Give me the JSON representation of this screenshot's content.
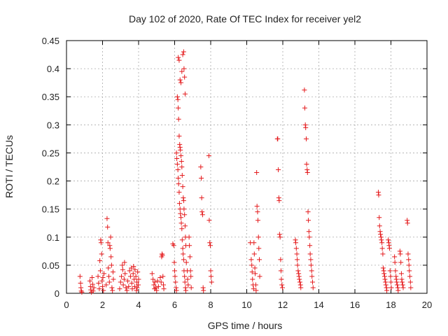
{
  "chart_data": {
    "type": "scatter",
    "title": "Day 102 of 2020, Rate Of TEC Index for receiver yel2",
    "xlabel": "GPS time / hours",
    "ylabel": "ROTI / TECUs",
    "xlim": [
      0,
      20
    ],
    "ylim": [
      0,
      0.45
    ],
    "xticks": [
      "0",
      "2",
      "4",
      "6",
      "8",
      "10",
      "12",
      "14",
      "16",
      "18",
      "20"
    ],
    "yticks": [
      "0",
      "0.05",
      "0.1",
      "0.15",
      "0.2",
      "0.25",
      "0.3",
      "0.35",
      "0.4",
      "0.45"
    ],
    "grid": true,
    "marker": "+",
    "marker_color": "#e41a1c",
    "series": [
      {
        "name": "ROTI",
        "points": [
          [
            0.75,
            0.03
          ],
          [
            0.78,
            0.018
          ],
          [
            0.8,
            0.01
          ],
          [
            0.82,
            0.004
          ],
          [
            0.85,
            0.002
          ],
          [
            1.3,
            0.022
          ],
          [
            1.33,
            0.012
          ],
          [
            1.35,
            0.006
          ],
          [
            1.38,
            0.002
          ],
          [
            1.42,
            0.028
          ],
          [
            1.45,
            0.016
          ],
          [
            1.48,
            0.004
          ],
          [
            1.52,
            0.01
          ],
          [
            1.75,
            0.03
          ],
          [
            1.78,
            0.018
          ],
          [
            1.82,
            0.008
          ],
          [
            1.85,
            0.058
          ],
          [
            1.88,
            0.04
          ],
          [
            1.9,
            0.095
          ],
          [
            1.92,
            0.09
          ],
          [
            1.95,
            0.07
          ],
          [
            1.97,
            0.022
          ],
          [
            2.0,
            0.012
          ],
          [
            2.02,
            0.028
          ],
          [
            2.05,
            0.005
          ],
          [
            2.08,
            0.035
          ],
          [
            2.2,
            0.015
          ],
          [
            2.25,
            0.133
          ],
          [
            2.28,
            0.118
          ],
          [
            2.3,
            0.09
          ],
          [
            2.32,
            0.045
          ],
          [
            2.35,
            0.03
          ],
          [
            2.38,
            0.02
          ],
          [
            2.4,
            0.085
          ],
          [
            2.42,
            0.08
          ],
          [
            2.45,
            0.1
          ],
          [
            2.47,
            0.065
          ],
          [
            2.5,
            0.05
          ],
          [
            2.52,
            0.01
          ],
          [
            2.55,
            0.005
          ],
          [
            2.58,
            0.038
          ],
          [
            2.6,
            0.025
          ],
          [
            2.95,
            0.008
          ],
          [
            3.0,
            0.02
          ],
          [
            3.05,
            0.03
          ],
          [
            3.1,
            0.05
          ],
          [
            3.12,
            0.042
          ],
          [
            3.15,
            0.015
          ],
          [
            3.2,
            0.025
          ],
          [
            3.22,
            0.055
          ],
          [
            3.25,
            0.035
          ],
          [
            3.3,
            0.01
          ],
          [
            3.35,
            0.005
          ],
          [
            3.4,
            0.022
          ],
          [
            3.45,
            0.012
          ],
          [
            3.5,
            0.04
          ],
          [
            3.55,
            0.03
          ],
          [
            3.6,
            0.045
          ],
          [
            3.62,
            0.018
          ],
          [
            3.65,
            0.008
          ],
          [
            3.7,
            0.035
          ],
          [
            3.72,
            0.048
          ],
          [
            3.75,
            0.025
          ],
          [
            3.78,
            0.012
          ],
          [
            3.8,
            0.042
          ],
          [
            3.85,
            0.03
          ],
          [
            3.88,
            0.005
          ],
          [
            3.9,
            0.02
          ],
          [
            3.92,
            0.01
          ],
          [
            3.95,
            0.038
          ],
          [
            3.98,
            0.015
          ],
          [
            4.0,
            0.025
          ],
          [
            4.75,
            0.035
          ],
          [
            4.8,
            0.025
          ],
          [
            4.85,
            0.015
          ],
          [
            4.88,
            0.008
          ],
          [
            4.9,
            0.02
          ],
          [
            4.95,
            0.01
          ],
          [
            5.0,
            0.005
          ],
          [
            5.05,
            0.022
          ],
          [
            5.1,
            0.012
          ],
          [
            5.2,
            0.028
          ],
          [
            5.25,
            0.02
          ],
          [
            5.28,
            0.065
          ],
          [
            5.3,
            0.07
          ],
          [
            5.32,
            0.068
          ],
          [
            5.35,
            0.03
          ],
          [
            5.38,
            0.015
          ],
          [
            5.4,
            0.008
          ],
          [
            5.9,
            0.088
          ],
          [
            5.95,
            0.085
          ],
          [
            5.98,
            0.055
          ],
          [
            6.0,
            0.04
          ],
          [
            6.02,
            0.03
          ],
          [
            6.05,
            0.02
          ],
          [
            6.08,
            0.01
          ],
          [
            6.1,
            0.005
          ],
          [
            6.1,
            0.25
          ],
          [
            6.12,
            0.24
          ],
          [
            6.15,
            0.23
          ],
          [
            6.18,
            0.22
          ],
          [
            6.2,
            0.205
          ],
          [
            6.22,
            0.195
          ],
          [
            6.25,
            0.18
          ],
          [
            6.27,
            0.16
          ],
          [
            6.3,
            0.15
          ],
          [
            6.32,
            0.142
          ],
          [
            6.35,
            0.135
          ],
          [
            6.37,
            0.125
          ],
          [
            6.4,
            0.115
          ],
          [
            6.42,
            0.095
          ],
          [
            6.45,
            0.08
          ],
          [
            6.47,
            0.07
          ],
          [
            6.5,
            0.06
          ],
          [
            6.52,
            0.04
          ],
          [
            6.55,
            0.03
          ],
          [
            6.57,
            0.02
          ],
          [
            6.6,
            0.01
          ],
          [
            6.62,
            0.005
          ],
          [
            6.15,
            0.35
          ],
          [
            6.18,
            0.345
          ],
          [
            6.2,
            0.33
          ],
          [
            6.22,
            0.31
          ],
          [
            6.25,
            0.28
          ],
          [
            6.28,
            0.265
          ],
          [
            6.3,
            0.26
          ],
          [
            6.32,
            0.255
          ],
          [
            6.35,
            0.245
          ],
          [
            6.38,
            0.235
          ],
          [
            6.4,
            0.225
          ],
          [
            6.42,
            0.21
          ],
          [
            6.45,
            0.19
          ],
          [
            6.48,
            0.17
          ],
          [
            6.5,
            0.165
          ],
          [
            6.52,
            0.15
          ],
          [
            6.55,
            0.14
          ],
          [
            6.58,
            0.12
          ],
          [
            6.6,
            0.1
          ],
          [
            6.62,
            0.085
          ],
          [
            6.65,
            0.055
          ],
          [
            6.7,
            0.04
          ],
          [
            6.72,
            0.025
          ],
          [
            6.75,
            0.015
          ],
          [
            6.2,
            0.42
          ],
          [
            6.25,
            0.415
          ],
          [
            6.3,
            0.38
          ],
          [
            6.35,
            0.375
          ],
          [
            6.4,
            0.395
          ],
          [
            6.45,
            0.425
          ],
          [
            6.5,
            0.43
          ],
          [
            6.52,
            0.4
          ],
          [
            6.55,
            0.385
          ],
          [
            6.58,
            0.355
          ],
          [
            6.8,
            0.1
          ],
          [
            6.82,
            0.085
          ],
          [
            6.85,
            0.065
          ],
          [
            6.88,
            0.04
          ],
          [
            6.9,
            0.03
          ],
          [
            6.92,
            0.01
          ],
          [
            7.45,
            0.225
          ],
          [
            7.48,
            0.205
          ],
          [
            7.5,
            0.17
          ],
          [
            7.52,
            0.145
          ],
          [
            7.55,
            0.14
          ],
          [
            7.58,
            0.01
          ],
          [
            7.6,
            0.005
          ],
          [
            7.9,
            0.245
          ],
          [
            7.92,
            0.13
          ],
          [
            7.95,
            0.09
          ],
          [
            7.98,
            0.085
          ],
          [
            8.0,
            0.04
          ],
          [
            8.02,
            0.03
          ],
          [
            8.05,
            0.02
          ],
          [
            10.2,
            0.09
          ],
          [
            10.25,
            0.06
          ],
          [
            10.28,
            0.05
          ],
          [
            10.3,
            0.038
          ],
          [
            10.32,
            0.025
          ],
          [
            10.35,
            0.015
          ],
          [
            10.38,
            0.008
          ],
          [
            10.4,
            0.09
          ],
          [
            10.42,
            0.07
          ],
          [
            10.45,
            0.045
          ],
          [
            10.47,
            0.035
          ],
          [
            10.5,
            0.015
          ],
          [
            10.52,
            0.005
          ],
          [
            10.55,
            0.215
          ],
          [
            10.57,
            0.155
          ],
          [
            10.6,
            0.145
          ],
          [
            10.62,
            0.13
          ],
          [
            10.65,
            0.1
          ],
          [
            10.67,
            0.08
          ],
          [
            10.7,
            0.06
          ],
          [
            10.72,
            0.03
          ],
          [
            11.7,
            0.275
          ],
          [
            11.72,
            0.275
          ],
          [
            11.75,
            0.22
          ],
          [
            11.78,
            0.17
          ],
          [
            11.8,
            0.165
          ],
          [
            11.82,
            0.105
          ],
          [
            11.85,
            0.1
          ],
          [
            11.88,
            0.06
          ],
          [
            11.9,
            0.04
          ],
          [
            11.92,
            0.025
          ],
          [
            11.95,
            0.015
          ],
          [
            11.98,
            0.01
          ],
          [
            12.7,
            0.095
          ],
          [
            12.72,
            0.09
          ],
          [
            12.75,
            0.08
          ],
          [
            12.78,
            0.07
          ],
          [
            12.8,
            0.06
          ],
          [
            12.82,
            0.05
          ],
          [
            12.85,
            0.04
          ],
          [
            12.88,
            0.035
          ],
          [
            12.9,
            0.03
          ],
          [
            12.92,
            0.025
          ],
          [
            12.95,
            0.02
          ],
          [
            12.98,
            0.015
          ],
          [
            13.0,
            0.01
          ],
          [
            13.2,
            0.362
          ],
          [
            13.22,
            0.33
          ],
          [
            13.25,
            0.3
          ],
          [
            13.27,
            0.295
          ],
          [
            13.3,
            0.275
          ],
          [
            13.32,
            0.23
          ],
          [
            13.35,
            0.22
          ],
          [
            13.37,
            0.215
          ],
          [
            13.4,
            0.145
          ],
          [
            13.42,
            0.13
          ],
          [
            13.45,
            0.11
          ],
          [
            13.47,
            0.1
          ],
          [
            13.5,
            0.085
          ],
          [
            13.52,
            0.07
          ],
          [
            13.55,
            0.06
          ],
          [
            13.57,
            0.05
          ],
          [
            13.6,
            0.04
          ],
          [
            13.62,
            0.03
          ],
          [
            13.65,
            0.02
          ],
          [
            13.68,
            0.01
          ],
          [
            17.3,
            0.18
          ],
          [
            17.32,
            0.175
          ],
          [
            17.35,
            0.135
          ],
          [
            17.37,
            0.12
          ],
          [
            17.4,
            0.11
          ],
          [
            17.42,
            0.105
          ],
          [
            17.45,
            0.1
          ],
          [
            17.47,
            0.095
          ],
          [
            17.5,
            0.09
          ],
          [
            17.52,
            0.08
          ],
          [
            17.55,
            0.07
          ],
          [
            17.57,
            0.045
          ],
          [
            17.6,
            0.04
          ],
          [
            17.62,
            0.035
          ],
          [
            17.65,
            0.03
          ],
          [
            17.67,
            0.025
          ],
          [
            17.7,
            0.02
          ],
          [
            17.72,
            0.015
          ],
          [
            17.75,
            0.01
          ],
          [
            17.77,
            0.005
          ],
          [
            17.85,
            0.095
          ],
          [
            17.88,
            0.09
          ],
          [
            17.9,
            0.085
          ],
          [
            17.92,
            0.08
          ],
          [
            17.95,
            0.04
          ],
          [
            17.98,
            0.03
          ],
          [
            18.0,
            0.02
          ],
          [
            18.02,
            0.01
          ],
          [
            18.2,
            0.065
          ],
          [
            18.22,
            0.055
          ],
          [
            18.25,
            0.04
          ],
          [
            18.28,
            0.03
          ],
          [
            18.3,
            0.025
          ],
          [
            18.32,
            0.02
          ],
          [
            18.35,
            0.015
          ],
          [
            18.38,
            0.01
          ],
          [
            18.4,
            0.005
          ],
          [
            18.5,
            0.075
          ],
          [
            18.52,
            0.07
          ],
          [
            18.55,
            0.055
          ],
          [
            18.58,
            0.035
          ],
          [
            18.6,
            0.025
          ],
          [
            18.62,
            0.02
          ],
          [
            18.65,
            0.015
          ],
          [
            18.68,
            0.01
          ],
          [
            18.9,
            0.13
          ],
          [
            18.92,
            0.125
          ],
          [
            18.95,
            0.07
          ],
          [
            18.98,
            0.06
          ],
          [
            19.0,
            0.05
          ],
          [
            19.02,
            0.04
          ],
          [
            19.05,
            0.03
          ],
          [
            19.08,
            0.02
          ],
          [
            19.1,
            0.01
          ]
        ]
      }
    ]
  }
}
